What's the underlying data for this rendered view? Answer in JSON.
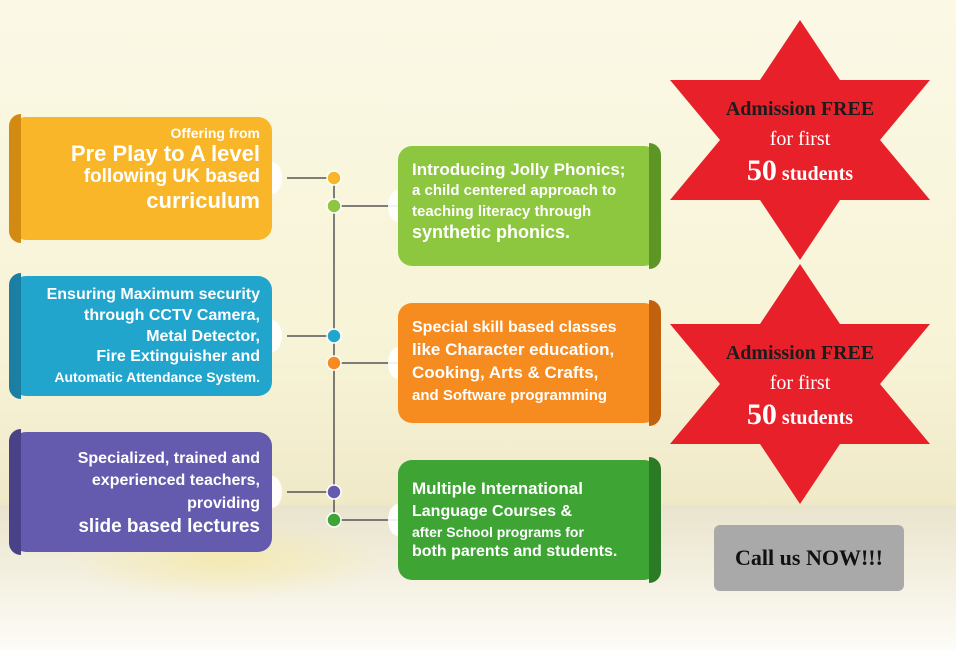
{
  "left_boxes": [
    {
      "lines": [
        "Offering from",
        "Pre Play to A level",
        "following UK based",
        "curriculum"
      ],
      "color": "#f8b628"
    },
    {
      "lines": [
        "Ensuring Maximum security",
        "through CCTV Camera,",
        "Metal Detector,",
        "Fire Extinguisher and",
        "Automatic Attendance System."
      ],
      "color": "#22a5cd"
    },
    {
      "lines": [
        "Specialized, trained and",
        "experienced teachers,",
        "providing",
        "slide based lectures"
      ],
      "color": "#655bae"
    }
  ],
  "right_boxes": [
    {
      "lines": [
        "Introducing Jolly Phonics;",
        "a child centered approach to",
        "teaching literacy through",
        "synthetic phonics."
      ],
      "color": "#8dc63f"
    },
    {
      "lines": [
        "Special skill based classes",
        "like Character education,",
        "Cooking, Arts & Crafts,",
        "and Software programming"
      ],
      "color": "#f68b1f"
    },
    {
      "lines": [
        "Multiple International",
        "Language Courses &",
        "after School programs for",
        "both parents and students."
      ],
      "color": "#3ea535"
    }
  ],
  "stars": [
    {
      "line1": "Admission FREE",
      "line2": "for first",
      "number": "50",
      "line3": "students",
      "color": "#e8202a"
    },
    {
      "line1": "Admission FREE",
      "line2": "for first",
      "number": "50",
      "line3": "students",
      "color": "#e8202a"
    }
  ],
  "call_button": {
    "label": "Call us NOW!!!"
  },
  "connector_colors": [
    "#f8b628",
    "#8dc63f",
    "#22a5cd",
    "#f68b1f",
    "#655bae",
    "#3ea535"
  ]
}
